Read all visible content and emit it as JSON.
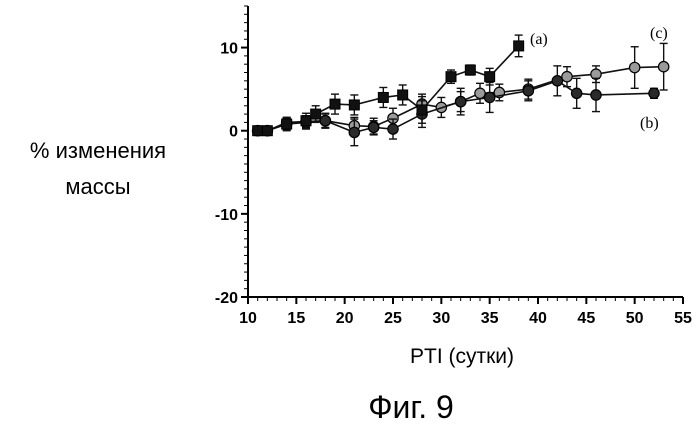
{
  "chart_data": {
    "type": "line",
    "xlabel": "PTI (сутки)",
    "ylabel_lines": [
      "% изменения",
      "массы"
    ],
    "caption": "Фиг. 9",
    "xlim": [
      10,
      55
    ],
    "ylim": [
      -20,
      15
    ],
    "x_ticks": [
      10,
      15,
      20,
      25,
      30,
      35,
      40,
      45,
      50,
      55
    ],
    "y_ticks": [
      -20,
      -10,
      0,
      10
    ],
    "grid": false,
    "series": [
      {
        "name": "(a)",
        "marker": "square",
        "x": [
          11,
          12,
          14,
          16,
          17,
          19,
          21,
          24,
          26,
          28,
          31,
          33,
          35,
          38
        ],
        "y": [
          0,
          0,
          0.8,
          1.2,
          2,
          3.2,
          3.1,
          4,
          4.3,
          2.5,
          6.5,
          7.3,
          6.5,
          10.2
        ],
        "err": [
          0.3,
          0.3,
          0.8,
          0.9,
          1,
          1.2,
          1.2,
          1.2,
          1.2,
          1.6,
          0.8,
          0.6,
          1,
          1.3
        ]
      },
      {
        "name": "(b)",
        "marker": "dark-circle",
        "x": [
          11,
          12,
          14,
          16,
          18,
          21,
          23,
          25,
          28,
          32,
          35,
          39,
          42,
          44,
          46,
          52
        ],
        "y": [
          0,
          0,
          0.8,
          1,
          1.2,
          -0.2,
          0.4,
          0.2,
          2,
          3.5,
          4,
          4.8,
          6,
          4.5,
          4.3,
          4.5
        ],
        "err": [
          0.3,
          0.3,
          0.7,
          0.8,
          0.9,
          1.6,
          0.8,
          1.2,
          1.6,
          1.6,
          1.8,
          1.2,
          1.8,
          1.8,
          2,
          0.6
        ]
      },
      {
        "name": "(c)",
        "marker": "light-circle",
        "x": [
          11,
          12,
          14,
          16,
          18,
          21,
          23,
          25,
          28,
          30,
          32,
          34,
          36,
          39,
          43,
          46,
          50,
          53
        ],
        "y": [
          0,
          0,
          1,
          1.1,
          1.2,
          0.6,
          0.5,
          1.5,
          3.2,
          2.8,
          3.5,
          4.5,
          4.6,
          5,
          6.5,
          6.8,
          7.6,
          7.7
        ],
        "err": [
          0.3,
          0.3,
          0.6,
          0.7,
          0.8,
          1,
          1,
          1.2,
          1.2,
          1.2,
          1.2,
          1.2,
          1,
          1.2,
          1.2,
          1,
          2.5,
          2.8
        ]
      }
    ]
  }
}
